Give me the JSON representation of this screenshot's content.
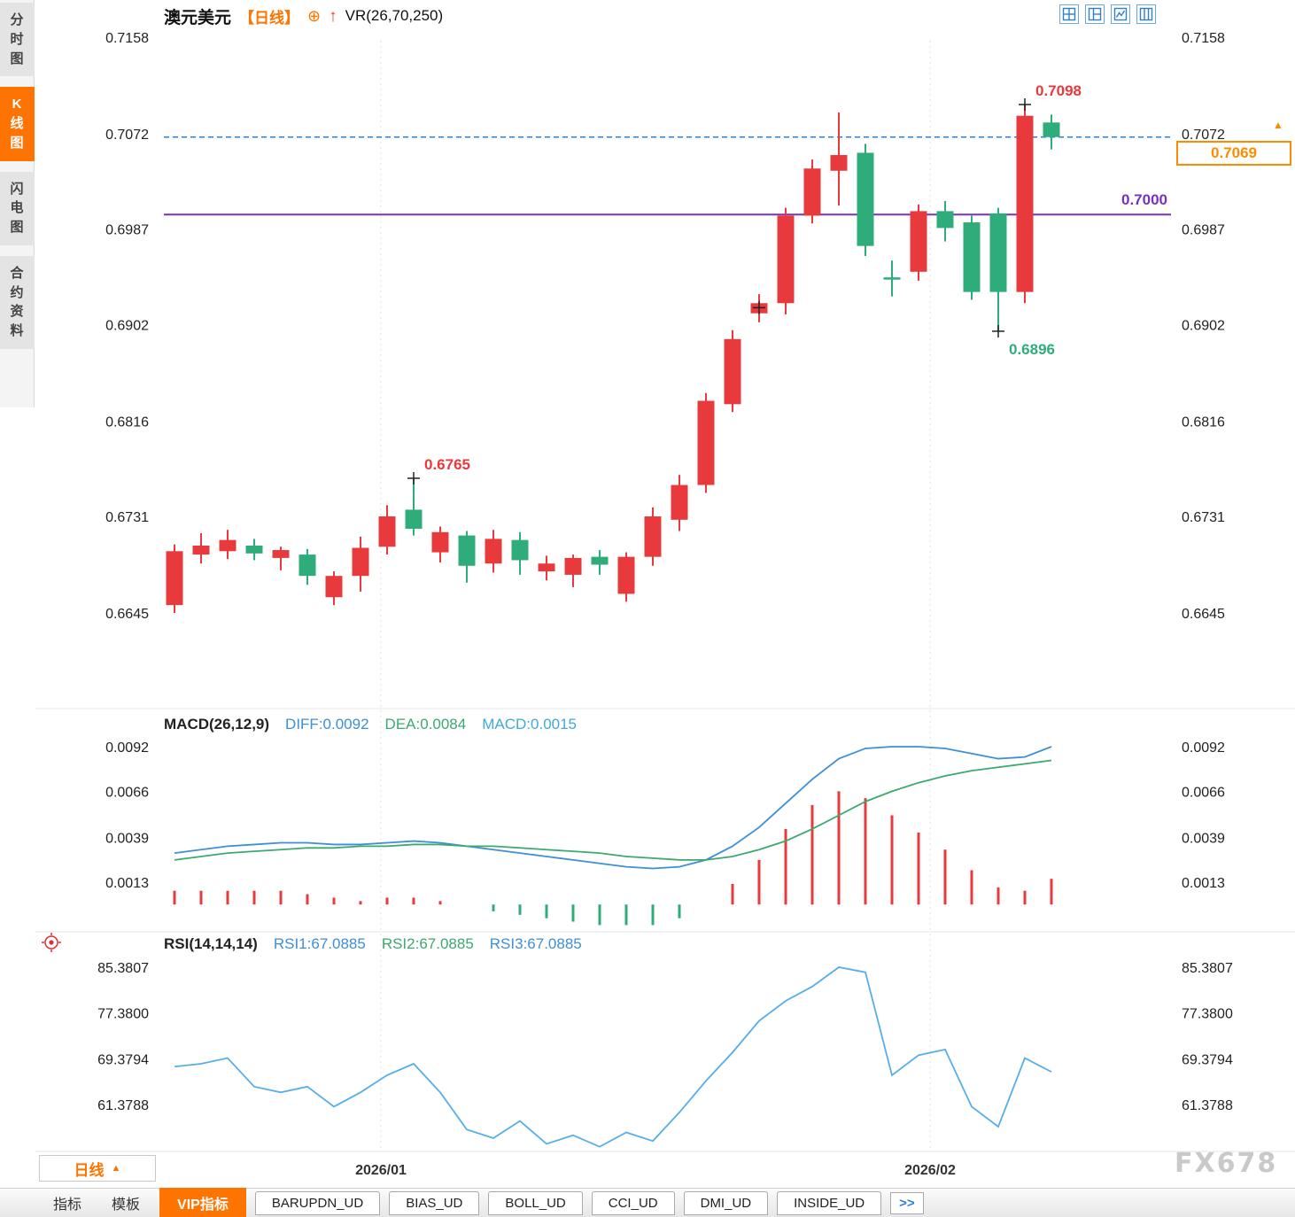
{
  "header": {
    "symbol": "澳元美元",
    "period": "【日线】",
    "indicator": "VR(26,70,250)"
  },
  "icons": {
    "add_indicator": "⊕",
    "up_arrow": "↑",
    "dropdown_up": "▲",
    "price_marker": "▲"
  },
  "sidebar": {
    "tabs": [
      {
        "name": "sidebar-tab-time-chart",
        "label": "分时图",
        "active": false
      },
      {
        "name": "sidebar-tab-kline-chart",
        "label": "K线图",
        "active": true
      },
      {
        "name": "sidebar-tab-flash-chart",
        "label": "闪电图",
        "active": false
      },
      {
        "name": "sidebar-tab-contract-info",
        "label": "合约资料",
        "active": false
      }
    ]
  },
  "price_tag": {
    "value": "0.7069"
  },
  "levels": {
    "purple_label": "0.7000"
  },
  "period_button": {
    "label": "日线"
  },
  "bottom_tabs": [
    {
      "name": "tab-indicators",
      "label": "指标",
      "type": "plain"
    },
    {
      "name": "tab-templates",
      "label": "模板",
      "type": "plain"
    },
    {
      "name": "tab-vip-indicators",
      "label": "VIP指标",
      "type": "active"
    },
    {
      "name": "tab-barupdn-ud",
      "label": "BARUPDN_UD",
      "type": "tab"
    },
    {
      "name": "tab-bias-ud",
      "label": "BIAS_UD",
      "type": "tab"
    },
    {
      "name": "tab-boll-ud",
      "label": "BOLL_UD",
      "type": "tab"
    },
    {
      "name": "tab-cci-ud",
      "label": "CCI_UD",
      "type": "tab"
    },
    {
      "name": "tab-dmi-ud",
      "label": "DMI_UD",
      "type": "tab"
    },
    {
      "name": "tab-inside-ud",
      "label": "INSIDE_UD",
      "type": "tab"
    },
    {
      "name": "tab-more",
      "label": ">>",
      "type": "more"
    }
  ],
  "watermark": "FX678",
  "colors": {
    "up": "#E8393D",
    "down": "#2EAD7B",
    "diff": "#3D8FD8",
    "dea": "#3CA96E",
    "macd_text": "#41A9DD",
    "rsi": "#56AEE8",
    "purple": "#7B2FBF",
    "blue": "#2B7FD9",
    "orange": "#FF7300",
    "price_tag": "#FF8A00"
  },
  "chart_data": [
    {
      "type": "candlestick",
      "title": "澳元美元 日线",
      "y_ticks": [
        0.7158,
        0.7072,
        0.6987,
        0.6902,
        0.6816,
        0.6731,
        0.6645
      ],
      "ylim": [
        0.661,
        0.7193
      ],
      "x_labels": [
        "2026/01",
        "2026/02"
      ],
      "last_price": 0.7069,
      "support_line": 0.7,
      "candles": [
        [
          0.6652,
          0.6706,
          0.6645,
          0.67
        ],
        [
          0.6697,
          0.6716,
          0.6689,
          0.6705
        ],
        [
          0.67,
          0.6719,
          0.6693,
          0.671
        ],
        [
          0.6705,
          0.6711,
          0.6692,
          0.6698
        ],
        [
          0.6694,
          0.6704,
          0.6683,
          0.6701
        ],
        [
          0.6697,
          0.6702,
          0.667,
          0.6678
        ],
        [
          0.6659,
          0.6682,
          0.6652,
          0.6678
        ],
        [
          0.6678,
          0.6713,
          0.6664,
          0.6703
        ],
        [
          0.6704,
          0.6741,
          0.6697,
          0.6731
        ],
        [
          0.6737,
          0.6765,
          0.6714,
          0.672
        ],
        [
          0.6699,
          0.6722,
          0.669,
          0.6717
        ],
        [
          0.6714,
          0.6718,
          0.6672,
          0.6687
        ],
        [
          0.6689,
          0.6719,
          0.6681,
          0.6711
        ],
        [
          0.671,
          0.6717,
          0.6679,
          0.6692
        ],
        [
          0.6682,
          0.6696,
          0.6674,
          0.6689
        ],
        [
          0.6679,
          0.6697,
          0.6668,
          0.6694
        ],
        [
          0.6695,
          0.6701,
          0.6679,
          0.6688
        ],
        [
          0.6662,
          0.6699,
          0.6655,
          0.6695
        ],
        [
          0.6695,
          0.6739,
          0.6687,
          0.6731
        ],
        [
          0.6728,
          0.6768,
          0.6718,
          0.6759
        ],
        [
          0.6759,
          0.6841,
          0.6752,
          0.6834
        ],
        [
          0.6831,
          0.6897,
          0.6824,
          0.6889
        ],
        [
          0.6912,
          0.6929,
          0.6904,
          0.6921
        ],
        [
          0.6921,
          0.7006,
          0.6911,
          0.6999
        ],
        [
          0.6999,
          0.7049,
          0.6992,
          0.7041
        ],
        [
          0.7039,
          0.7091,
          0.7008,
          0.7053
        ],
        [
          0.7055,
          0.7063,
          0.6963,
          0.6972
        ],
        [
          0.6944,
          0.6959,
          0.6927,
          0.6942
        ],
        [
          0.6949,
          0.7009,
          0.6941,
          0.7003
        ],
        [
          0.7003,
          0.7012,
          0.6976,
          0.6988
        ],
        [
          0.6993,
          0.6999,
          0.6924,
          0.6931
        ],
        [
          0.7001,
          0.7006,
          0.6896,
          0.6931
        ],
        [
          0.6931,
          0.7098,
          0.6921,
          0.7088
        ],
        [
          0.7082,
          0.7089,
          0.7058,
          0.7069
        ]
      ],
      "annotations": [
        {
          "index": 9,
          "price": 0.6765,
          "label": "0.6765",
          "color": "#E8393D",
          "side": "above"
        },
        {
          "index": 22,
          "price": 0.6917,
          "label": "",
          "color": "#222222",
          "side": "cross"
        },
        {
          "index": 31,
          "price": 0.6896,
          "label": "0.6896",
          "color": "#2EAD7B",
          "side": "below"
        },
        {
          "index": 32,
          "price": 0.7098,
          "label": "0.7098",
          "color": "#E8393D",
          "side": "above"
        }
      ]
    },
    {
      "type": "line",
      "title": "MACD(26,12,9)",
      "legend": [
        {
          "text": "DIFF:0.0092",
          "color": "#3D8FD8"
        },
        {
          "text": "DEA:0.0084",
          "color": "#3CA96E"
        },
        {
          "text": "MACD:0.0015",
          "color": "#41A9DD"
        }
      ],
      "y_ticks": [
        0.0092,
        0.0066,
        0.0039,
        0.0013
      ],
      "series": [
        {
          "name": "DIFF",
          "values": [
            0.003,
            0.0032,
            0.0034,
            0.0035,
            0.0036,
            0.0036,
            0.0035,
            0.0035,
            0.0036,
            0.0037,
            0.0036,
            0.0034,
            0.0032,
            0.003,
            0.0028,
            0.0026,
            0.0024,
            0.0022,
            0.0021,
            0.0022,
            0.0026,
            0.0034,
            0.0045,
            0.0059,
            0.0073,
            0.0085,
            0.0091,
            0.0092,
            0.0092,
            0.0091,
            0.0088,
            0.0085,
            0.0086,
            0.0092
          ]
        },
        {
          "name": "DEA",
          "values": [
            0.0026,
            0.0028,
            0.003,
            0.0031,
            0.0032,
            0.0033,
            0.0033,
            0.0034,
            0.0034,
            0.0035,
            0.0035,
            0.0034,
            0.0034,
            0.0033,
            0.0032,
            0.0031,
            0.003,
            0.0028,
            0.0027,
            0.0026,
            0.0026,
            0.0028,
            0.0032,
            0.0037,
            0.0044,
            0.0052,
            0.006,
            0.0066,
            0.0071,
            0.0075,
            0.0078,
            0.008,
            0.0082,
            0.0084
          ]
        },
        {
          "name": "MACD-histogram",
          "type": "bar",
          "values": [
            0.0008,
            0.0008,
            0.0008,
            0.0008,
            0.0008,
            0.0006,
            0.0004,
            0.0002,
            0.0004,
            0.0004,
            0.0002,
            0.0,
            -0.0004,
            -0.0006,
            -0.0008,
            -0.001,
            -0.0012,
            -0.0012,
            -0.0012,
            -0.0008,
            0.0,
            0.0012,
            0.0026,
            0.0044,
            0.0058,
            0.0066,
            0.0062,
            0.0052,
            0.0042,
            0.0032,
            0.002,
            0.001,
            0.0008,
            0.0015
          ]
        }
      ]
    },
    {
      "type": "line",
      "title": "RSI(14,14,14)",
      "legend": [
        {
          "text": "RSI1:67.0885",
          "color": "#3D8FD8"
        },
        {
          "text": "RSI2:67.0885",
          "color": "#3CA96E"
        },
        {
          "text": "RSI3:67.0885",
          "color": "#3D8FD8"
        }
      ],
      "y_ticks": [
        85.3807,
        77.38,
        69.3794,
        61.3788
      ],
      "series": [
        {
          "name": "RSI",
          "values": [
            68.0,
            68.5,
            69.5,
            64.5,
            63.5,
            64.5,
            61.0,
            63.5,
            66.5,
            68.5,
            63.5,
            57.0,
            55.5,
            58.5,
            54.5,
            56.0,
            54.0,
            56.5,
            55.0,
            60.0,
            65.5,
            70.5,
            76.0,
            79.5,
            82.0,
            85.3807,
            84.5,
            66.5,
            70.0,
            71.0,
            61.0,
            57.5,
            69.5,
            67.0885
          ]
        }
      ]
    }
  ]
}
